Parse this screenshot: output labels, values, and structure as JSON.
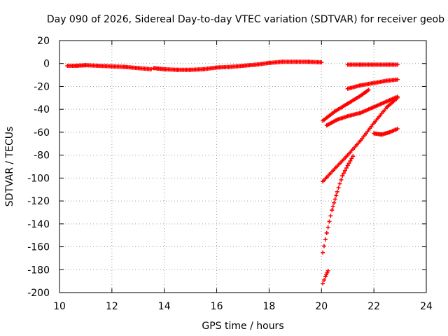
{
  "chart_data": {
    "type": "scatter",
    "title": "Day 090 of 2026, Sidereal Day-to-day VTEC variation (SDTVAR) for receiver geob",
    "xlabel": "GPS time / hours",
    "ylabel": "SDTVAR / TECUs",
    "xlim": [
      10,
      24
    ],
    "ylim": [
      -200,
      20
    ],
    "xticks": [
      "10",
      "12",
      "14",
      "16",
      "18",
      "20",
      "22",
      "24"
    ],
    "yticks": [
      "20",
      "0",
      "-20",
      "-40",
      "-60",
      "-80",
      "-100",
      "-120",
      "-140",
      "-160",
      "-180",
      "-200"
    ],
    "grid": true,
    "marker": "plus",
    "color": "#ff0000",
    "series": [
      {
        "segments": [
          [
            [
              10.3,
              -2
            ],
            [
              10.6,
              -2
            ],
            [
              11.0,
              -1.5
            ],
            [
              11.5,
              -2
            ],
            [
              12.0,
              -2.5
            ],
            [
              12.5,
              -3
            ],
            [
              13.0,
              -4
            ],
            [
              13.5,
              -5
            ]
          ],
          [
            [
              13.6,
              -4
            ],
            [
              14.0,
              -5
            ],
            [
              14.5,
              -5.5
            ],
            [
              15.0,
              -5.5
            ],
            [
              15.5,
              -5
            ],
            [
              16.0,
              -3.5
            ],
            [
              16.5,
              -3
            ],
            [
              17.0,
              -2
            ],
            [
              17.5,
              -1
            ],
            [
              18.0,
              0.5
            ],
            [
              18.5,
              1.5
            ],
            [
              19.0,
              1.5
            ],
            [
              19.5,
              1.5
            ],
            [
              20.0,
              1
            ]
          ],
          [
            [
              21.0,
              -1
            ],
            [
              21.5,
              -1
            ],
            [
              22.0,
              -1
            ],
            [
              22.5,
              -1
            ],
            [
              22.9,
              -1
            ]
          ]
        ]
      },
      {
        "segments": [
          [
            [
              21.0,
              -22
            ],
            [
              21.5,
              -19
            ],
            [
              22.0,
              -17
            ],
            [
              22.5,
              -15
            ],
            [
              22.9,
              -14
            ]
          ]
        ]
      },
      {
        "segments": [
          [
            [
              20.05,
              -50
            ],
            [
              20.5,
              -42
            ],
            [
              21.0,
              -35
            ],
            [
              21.5,
              -28
            ],
            [
              21.8,
              -23
            ]
          ]
        ]
      },
      {
        "segments": [
          [
            [
              20.2,
              -54
            ],
            [
              20.6,
              -49
            ],
            [
              21.0,
              -46
            ],
            [
              21.5,
              -43
            ],
            [
              22.0,
              -38
            ],
            [
              22.5,
              -33
            ],
            [
              22.9,
              -29
            ]
          ]
        ]
      },
      {
        "segments": [
          [
            [
              20.05,
              -103
            ],
            [
              20.5,
              -92
            ],
            [
              21.0,
              -80
            ],
            [
              21.5,
              -67
            ],
            [
              22.0,
              -52
            ],
            [
              22.5,
              -38
            ],
            [
              22.9,
              -30
            ]
          ]
        ]
      },
      {
        "segments": [
          [
            [
              22.0,
              -61
            ],
            [
              22.3,
              -62
            ],
            [
              22.6,
              -60
            ],
            [
              22.9,
              -57
            ]
          ]
        ]
      },
      {
        "segments": [
          [
            [
              20.05,
              -165
            ],
            [
              20.2,
              -148
            ],
            [
              20.4,
              -128
            ],
            [
              20.6,
              -112
            ],
            [
              20.8,
              -98
            ],
            [
              21.0,
              -89
            ],
            [
              21.2,
              -81
            ]
          ]
        ]
      },
      {
        "segments": [
          [
            [
              20.05,
              -192
            ],
            [
              20.15,
              -186
            ],
            [
              20.25,
              -181
            ]
          ]
        ]
      }
    ]
  }
}
